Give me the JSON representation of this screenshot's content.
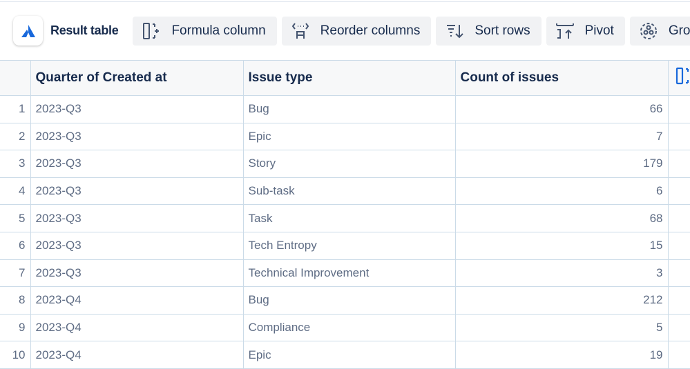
{
  "toolbar": {
    "title": "Result table",
    "buttons": [
      {
        "label": "Formula column",
        "icon": "formula-column-icon"
      },
      {
        "label": "Reorder columns",
        "icon": "reorder-columns-icon"
      },
      {
        "label": "Sort rows",
        "icon": "sort-rows-icon"
      },
      {
        "label": "Pivot",
        "icon": "pivot-icon"
      },
      {
        "label": "Grou",
        "icon": "group-icon"
      }
    ]
  },
  "table": {
    "headers": [
      "Quarter of Created at",
      "Issue type",
      "Count of issues"
    ],
    "rows": [
      {
        "n": "1",
        "q": "2023-Q3",
        "t": "Bug",
        "c": "66"
      },
      {
        "n": "2",
        "q": "2023-Q3",
        "t": "Epic",
        "c": "7"
      },
      {
        "n": "3",
        "q": "2023-Q3",
        "t": "Story",
        "c": "179"
      },
      {
        "n": "4",
        "q": "2023-Q3",
        "t": "Sub-task",
        "c": "6"
      },
      {
        "n": "5",
        "q": "2023-Q3",
        "t": "Task",
        "c": "68"
      },
      {
        "n": "6",
        "q": "2023-Q3",
        "t": "Tech Entropy",
        "c": "15"
      },
      {
        "n": "7",
        "q": "2023-Q3",
        "t": "Technical Improvement",
        "c": "3"
      },
      {
        "n": "8",
        "q": "2023-Q4",
        "t": "Bug",
        "c": "212"
      },
      {
        "n": "9",
        "q": "2023-Q4",
        "t": "Compliance",
        "c": "5"
      },
      {
        "n": "10",
        "q": "2023-Q4",
        "t": "Epic",
        "c": "19"
      }
    ]
  },
  "colors": {
    "accent": "#1868db",
    "text": "#172b4d",
    "muted": "#5e6c84",
    "grid": "#cbdbe8"
  }
}
